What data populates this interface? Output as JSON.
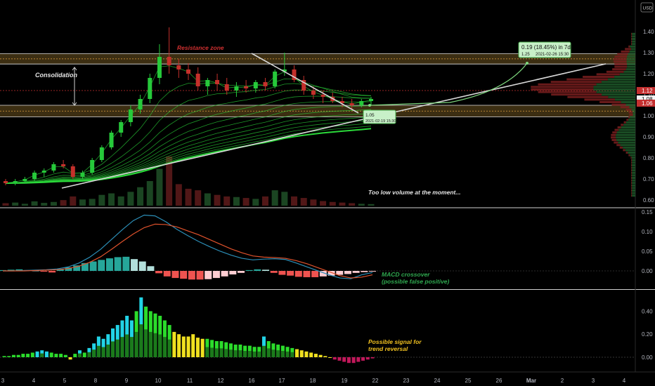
{
  "currency_label": "USD",
  "colors": {
    "up": "#26c93a",
    "down": "#c4302b",
    "ribbon": "#2bd93a",
    "zone": "#d9a441",
    "trendline": "#d8d8d8",
    "macd_line": "#2c8fb8",
    "signal_line": "#e0522c",
    "hist_pos_strong": "#26a69a",
    "hist_pos_weak": "#b2dfdb",
    "hist_neg_strong": "#ef5350",
    "hist_neg_weak": "#ffcdd2",
    "osc_cyan": "#22d3e6",
    "osc_green": "#2bdc2b",
    "osc_darkgreen": "#1b7a1b",
    "osc_yellow": "#f0e020",
    "osc_red": "#c2185b",
    "annotation_red": "#d03030",
    "annotation_green": "#2fa84f",
    "annotation_yellow": "#f0c020"
  },
  "chart_data": [
    {
      "type": "line",
      "panel": "price",
      "axis_labels": [
        "1.40",
        "1.30",
        "1.20",
        "1.10",
        "1.00",
        "0.90",
        "0.80",
        "0.70",
        "0.60"
      ],
      "axis_values": [
        1.4,
        1.3,
        1.2,
        1.1,
        1.0,
        0.9,
        0.8,
        0.7,
        0.6
      ],
      "ylim": [
        0.58,
        1.45
      ],
      "price_badges": [
        {
          "label": "1.12",
          "value": 1.12,
          "style": "red"
        },
        {
          "label": "1.08",
          "value": 1.08,
          "style": "white"
        },
        {
          "label": "1.06",
          "value": 1.06,
          "style": "red"
        }
      ],
      "x_ticks": [
        "3",
        "4",
        "5",
        "8",
        "9",
        "10",
        "11",
        "12",
        "16",
        "17",
        "18",
        "19",
        "22",
        "23",
        "24",
        "25",
        "26",
        "Mar",
        "2",
        "3",
        "4"
      ],
      "x_tick_index": [
        0,
        1,
        2,
        3,
        4,
        5,
        6,
        7,
        8,
        9,
        10,
        11,
        12,
        13,
        14,
        15,
        16,
        17,
        18,
        19,
        20
      ],
      "zones": [
        {
          "name": "Resistance zone",
          "label": "Resistance zone",
          "from": 1.246,
          "to": 1.295
        },
        {
          "name": "support",
          "label": "",
          "from": 0.995,
          "to": 1.05
        }
      ],
      "consolidation_label": "Consolidation",
      "consolidation_range": [
        1.05,
        1.23
      ],
      "volume_note": "Too low volume at the moment...",
      "projection": {
        "start_value": 1.05,
        "end_value": 1.25,
        "start_label": "1.05",
        "start_time": "2021-02-19 15:30",
        "box_change": "0.19 (18.45%) in 7d",
        "box_price": "1.25",
        "box_time": "2021-02-26 15:30"
      },
      "candles": [
        [
          0.69,
          0.7,
          0.67,
          0.68
        ],
        [
          0.68,
          0.7,
          0.67,
          0.69
        ],
        [
          0.69,
          0.71,
          0.68,
          0.7
        ],
        [
          0.7,
          0.74,
          0.69,
          0.73
        ],
        [
          0.73,
          0.75,
          0.71,
          0.74
        ],
        [
          0.74,
          0.78,
          0.73,
          0.77
        ],
        [
          0.77,
          0.79,
          0.75,
          0.76
        ],
        [
          0.76,
          0.77,
          0.7,
          0.71
        ],
        [
          0.71,
          0.74,
          0.7,
          0.73
        ],
        [
          0.73,
          0.8,
          0.72,
          0.79
        ],
        [
          0.79,
          0.86,
          0.78,
          0.85
        ],
        [
          0.85,
          0.93,
          0.84,
          0.92
        ],
        [
          0.92,
          0.98,
          0.9,
          0.97
        ],
        [
          0.97,
          1.05,
          0.95,
          1.03
        ],
        [
          1.03,
          1.1,
          1.01,
          1.08
        ],
        [
          1.08,
          1.2,
          1.06,
          1.18
        ],
        [
          1.18,
          1.34,
          1.15,
          1.28
        ],
        [
          1.28,
          1.42,
          1.2,
          1.24
        ],
        [
          1.24,
          1.27,
          1.18,
          1.22
        ],
        [
          1.22,
          1.25,
          1.17,
          1.2
        ],
        [
          1.2,
          1.23,
          1.12,
          1.14
        ],
        [
          1.14,
          1.18,
          1.1,
          1.17
        ],
        [
          1.17,
          1.2,
          1.12,
          1.15
        ],
        [
          1.15,
          1.18,
          1.1,
          1.12
        ],
        [
          1.12,
          1.16,
          1.09,
          1.14
        ],
        [
          1.14,
          1.17,
          1.11,
          1.13
        ],
        [
          1.13,
          1.17,
          1.11,
          1.16
        ],
        [
          1.16,
          1.18,
          1.12,
          1.14
        ],
        [
          1.14,
          1.22,
          1.13,
          1.21
        ],
        [
          1.21,
          1.3,
          1.19,
          1.22
        ],
        [
          1.22,
          1.24,
          1.16,
          1.17
        ],
        [
          1.17,
          1.19,
          1.1,
          1.12
        ],
        [
          1.12,
          1.14,
          1.08,
          1.1
        ],
        [
          1.1,
          1.12,
          1.06,
          1.09
        ],
        [
          1.09,
          1.11,
          1.06,
          1.07
        ],
        [
          1.07,
          1.09,
          1.04,
          1.06
        ],
        [
          1.06,
          1.08,
          1.03,
          1.05
        ],
        [
          1.05,
          1.08,
          1.04,
          1.07
        ],
        [
          1.07,
          1.09,
          1.05,
          1.08
        ]
      ],
      "volume": [
        8,
        10,
        6,
        14,
        9,
        12,
        18,
        30,
        20,
        22,
        35,
        40,
        30,
        45,
        60,
        80,
        120,
        160,
        70,
        55,
        50,
        40,
        35,
        30,
        28,
        25,
        22,
        30,
        50,
        45,
        30,
        25,
        20,
        15,
        12,
        10,
        8,
        6,
        5
      ]
    },
    {
      "type": "bar",
      "panel": "macd",
      "axis_labels": [
        "0.15",
        "0.10",
        "0.05",
        "0.00"
      ],
      "axis_values": [
        0.15,
        0.1,
        0.05,
        0.0
      ],
      "ylim": [
        -0.035,
        0.165
      ],
      "note": "MACD crossover\n(possible false positive)",
      "note_line1": "MACD crossover",
      "note_line2": "(possible false positive)",
      "histogram": [
        0.002,
        0.003,
        0.004,
        0.002,
        0.001,
        -0.002,
        -0.004,
        0.005,
        0.009,
        0.014,
        0.02,
        0.024,
        0.028,
        0.032,
        0.035,
        0.036,
        0.03,
        0.024,
        0.012,
        -0.006,
        -0.014,
        -0.018,
        -0.02,
        -0.022,
        -0.022,
        -0.021,
        -0.018,
        -0.014,
        -0.009,
        -0.005,
        0.002,
        0.004,
        0.003,
        -0.005,
        -0.01,
        -0.012,
        -0.015,
        -0.016,
        -0.016,
        -0.014,
        -0.012,
        -0.01,
        -0.008,
        -0.005,
        -0.003,
        -0.001
      ],
      "macd_line": [
        0.0,
        0.0,
        0.001,
        0.002,
        0.003,
        0.005,
        0.01,
        0.02,
        0.035,
        0.055,
        0.08,
        0.105,
        0.128,
        0.142,
        0.14,
        0.125,
        0.106,
        0.09,
        0.075,
        0.062,
        0.05,
        0.04,
        0.032,
        0.028,
        0.03,
        0.031,
        0.029,
        0.02,
        0.01,
        0.0,
        -0.01,
        -0.018,
        -0.02,
        -0.01,
        -0.004
      ],
      "signal_line": [
        0.0,
        0.0,
        0.0,
        0.001,
        0.002,
        0.003,
        0.006,
        0.012,
        0.022,
        0.036,
        0.055,
        0.075,
        0.094,
        0.11,
        0.119,
        0.118,
        0.112,
        0.102,
        0.092,
        0.08,
        0.068,
        0.056,
        0.046,
        0.038,
        0.035,
        0.034,
        0.032,
        0.026,
        0.018,
        0.008,
        -0.002,
        -0.012,
        -0.018,
        -0.016,
        -0.01
      ]
    },
    {
      "type": "bar",
      "panel": "oscillator",
      "axis_labels": [
        "0.40",
        "0.20",
        "0.00"
      ],
      "axis_values": [
        0.4,
        0.2,
        0.0
      ],
      "ylim": [
        -0.08,
        0.55
      ],
      "note_line1": "Possible signal for",
      "note_line2": "trend reversal",
      "bars": [
        [
          0.01,
          "g"
        ],
        [
          0.01,
          "g"
        ],
        [
          0.02,
          "g"
        ],
        [
          0.02,
          "g"
        ],
        [
          0.03,
          "g"
        ],
        [
          0.03,
          "g"
        ],
        [
          0.04,
          "g"
        ],
        [
          0.05,
          "c"
        ],
        [
          0.06,
          "c"
        ],
        [
          0.05,
          "c"
        ],
        [
          0.04,
          "g"
        ],
        [
          0.03,
          "g"
        ],
        [
          0.03,
          "g"
        ],
        [
          0.02,
          "g"
        ],
        [
          -0.02,
          "y"
        ],
        [
          0.03,
          "g"
        ],
        [
          0.06,
          "c"
        ],
        [
          0.04,
          "g"
        ],
        [
          0.08,
          "c"
        ],
        [
          0.12,
          "c"
        ],
        [
          0.18,
          "c"
        ],
        [
          0.16,
          "c"
        ],
        [
          0.2,
          "c"
        ],
        [
          0.25,
          "c"
        ],
        [
          0.28,
          "c"
        ],
        [
          0.32,
          "c"
        ],
        [
          0.36,
          "c"
        ],
        [
          0.32,
          "c"
        ],
        [
          0.4,
          "g"
        ],
        [
          0.52,
          "c"
        ],
        [
          0.44,
          "g"
        ],
        [
          0.4,
          "g"
        ],
        [
          0.38,
          "g"
        ],
        [
          0.36,
          "g"
        ],
        [
          0.32,
          "g"
        ],
        [
          0.28,
          "g"
        ],
        [
          0.22,
          "y"
        ],
        [
          0.2,
          "y"
        ],
        [
          0.18,
          "y"
        ],
        [
          0.18,
          "y"
        ],
        [
          0.2,
          "y"
        ],
        [
          0.17,
          "y"
        ],
        [
          0.16,
          "y"
        ],
        [
          0.16,
          "g"
        ],
        [
          0.15,
          "g"
        ],
        [
          0.14,
          "g"
        ],
        [
          0.14,
          "g"
        ],
        [
          0.13,
          "g"
        ],
        [
          0.12,
          "g"
        ],
        [
          0.11,
          "g"
        ],
        [
          0.11,
          "g"
        ],
        [
          0.1,
          "g"
        ],
        [
          0.1,
          "g"
        ],
        [
          0.09,
          "g"
        ],
        [
          0.09,
          "g"
        ],
        [
          0.18,
          "c"
        ],
        [
          0.14,
          "g"
        ],
        [
          0.12,
          "g"
        ],
        [
          0.11,
          "g"
        ],
        [
          0.1,
          "g"
        ],
        [
          0.09,
          "g"
        ],
        [
          0.08,
          "g"
        ],
        [
          0.07,
          "y"
        ],
        [
          0.06,
          "y"
        ],
        [
          0.05,
          "y"
        ],
        [
          0.04,
          "y"
        ],
        [
          0.03,
          "y"
        ],
        [
          0.02,
          "y"
        ],
        [
          0.01,
          "y"
        ],
        [
          0.0,
          "y"
        ],
        [
          -0.02,
          "r"
        ],
        [
          -0.03,
          "r"
        ],
        [
          -0.04,
          "r"
        ],
        [
          -0.05,
          "r"
        ],
        [
          -0.05,
          "r"
        ],
        [
          -0.04,
          "r"
        ],
        [
          -0.03,
          "r"
        ],
        [
          -0.02,
          "r"
        ],
        [
          -0.01,
          "r"
        ]
      ]
    }
  ]
}
